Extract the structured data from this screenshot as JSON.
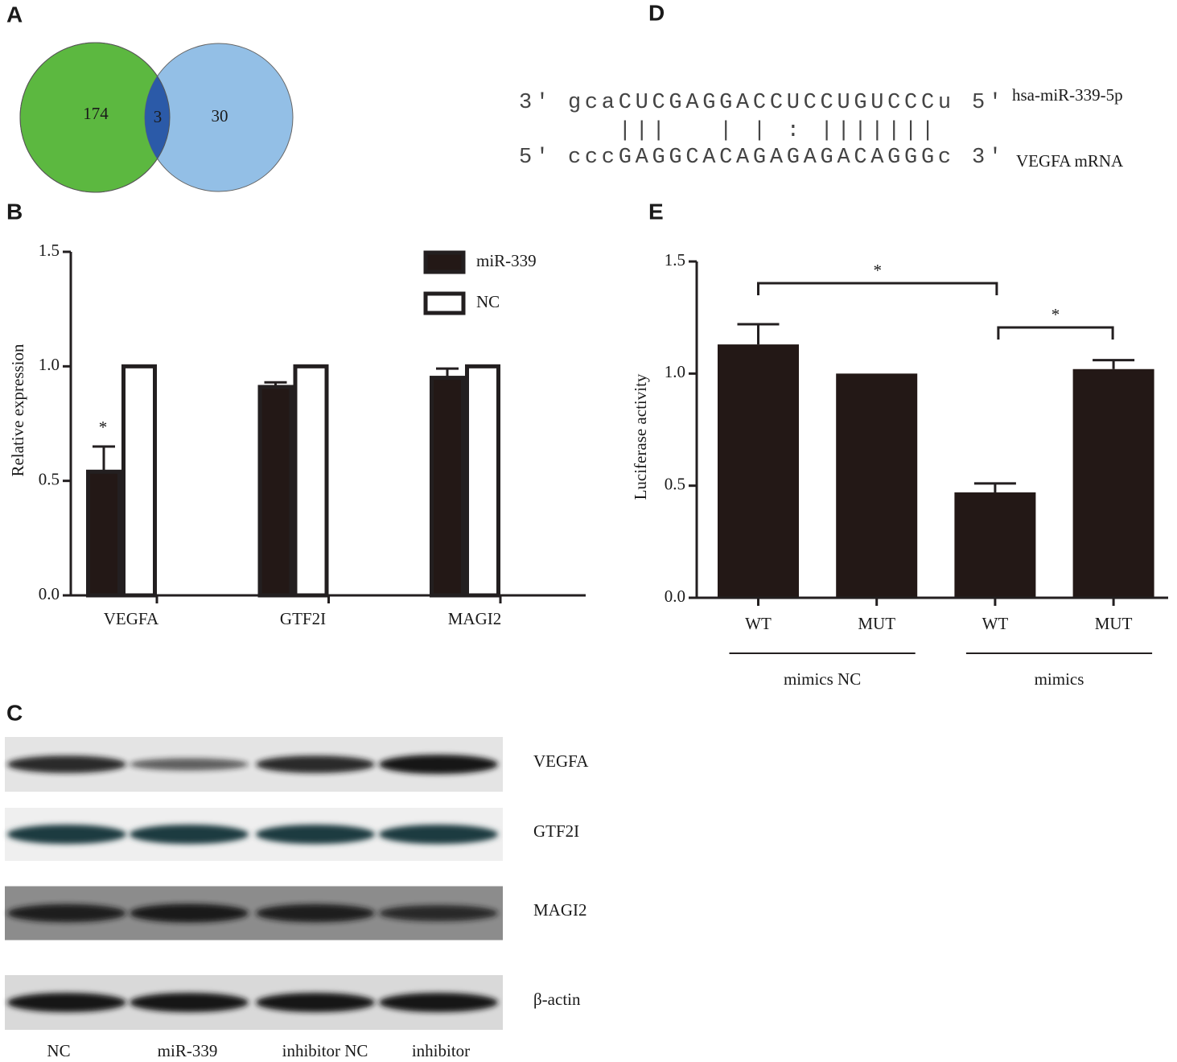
{
  "panel_labels": [
    "A",
    "B",
    "C",
    "D",
    "E"
  ],
  "venn": {
    "left": 174,
    "overlap": 3,
    "right": 30,
    "colors": {
      "left": "#5cb840",
      "overlap": "#2b5aa8",
      "right": "#93bfe6"
    }
  },
  "alignment": {
    "top": {
      "start": "3'",
      "sequence": "gcaCUCGAGGACCUCCUGUCCCu",
      "end": "5'",
      "name": "hsa-miR-339-5p"
    },
    "pairing": "   |||   | | : |||||||",
    "bottom": {
      "start": "5'",
      "sequence": "cccGAGGCACAGAGAGACAGGGc",
      "end": "3'",
      "name": "VEGFA mRNA"
    }
  },
  "western_blot": {
    "proteins": [
      "VEGFA",
      "GTF2I",
      "MAGI2",
      "β-actin"
    ],
    "lanes": [
      "NC",
      "miR-339",
      "inhibitor NC",
      "inhibitor"
    ]
  },
  "chart_data": [
    {
      "type": "bar",
      "y_label": "Relative expression",
      "categories": [
        "VEGFA",
        "GTF2I",
        "MAGI2"
      ],
      "series": [
        {
          "name": "miR-339",
          "color": "#231816",
          "values": [
            0.54,
            0.91,
            0.95
          ],
          "errors": [
            0.11,
            0.02,
            0.04
          ]
        },
        {
          "name": "NC",
          "color": "#ffffff",
          "values": [
            1,
            1,
            1
          ]
        }
      ],
      "ylim": [
        0,
        1.5
      ],
      "yticks": [
        {
          "value": 0,
          "label": "0.0"
        },
        0.5,
        {
          "value": 1,
          "label": "1.0"
        },
        1.5
      ],
      "annotations": [
        "*"
      ],
      "legend": "upper right"
    },
    {
      "type": "bar",
      "y_label": "Luciferase activity",
      "categories": [
        "WT",
        "MUT",
        "WT",
        "MUT"
      ],
      "groups": [
        "mimics NC",
        "mimics"
      ],
      "values": [
        1.13,
        1.0,
        0.47,
        1.02
      ],
      "errors": [
        0.09,
        0,
        0.04,
        0.04
      ],
      "color": "#231816",
      "ylim": [
        0,
        1.5
      ],
      "yticks": [
        {
          "value": 0,
          "label": "0.0"
        },
        0.5,
        {
          "value": 1,
          "label": "1.0"
        },
        1.5
      ],
      "annotations": [
        "*",
        "*"
      ]
    }
  ]
}
